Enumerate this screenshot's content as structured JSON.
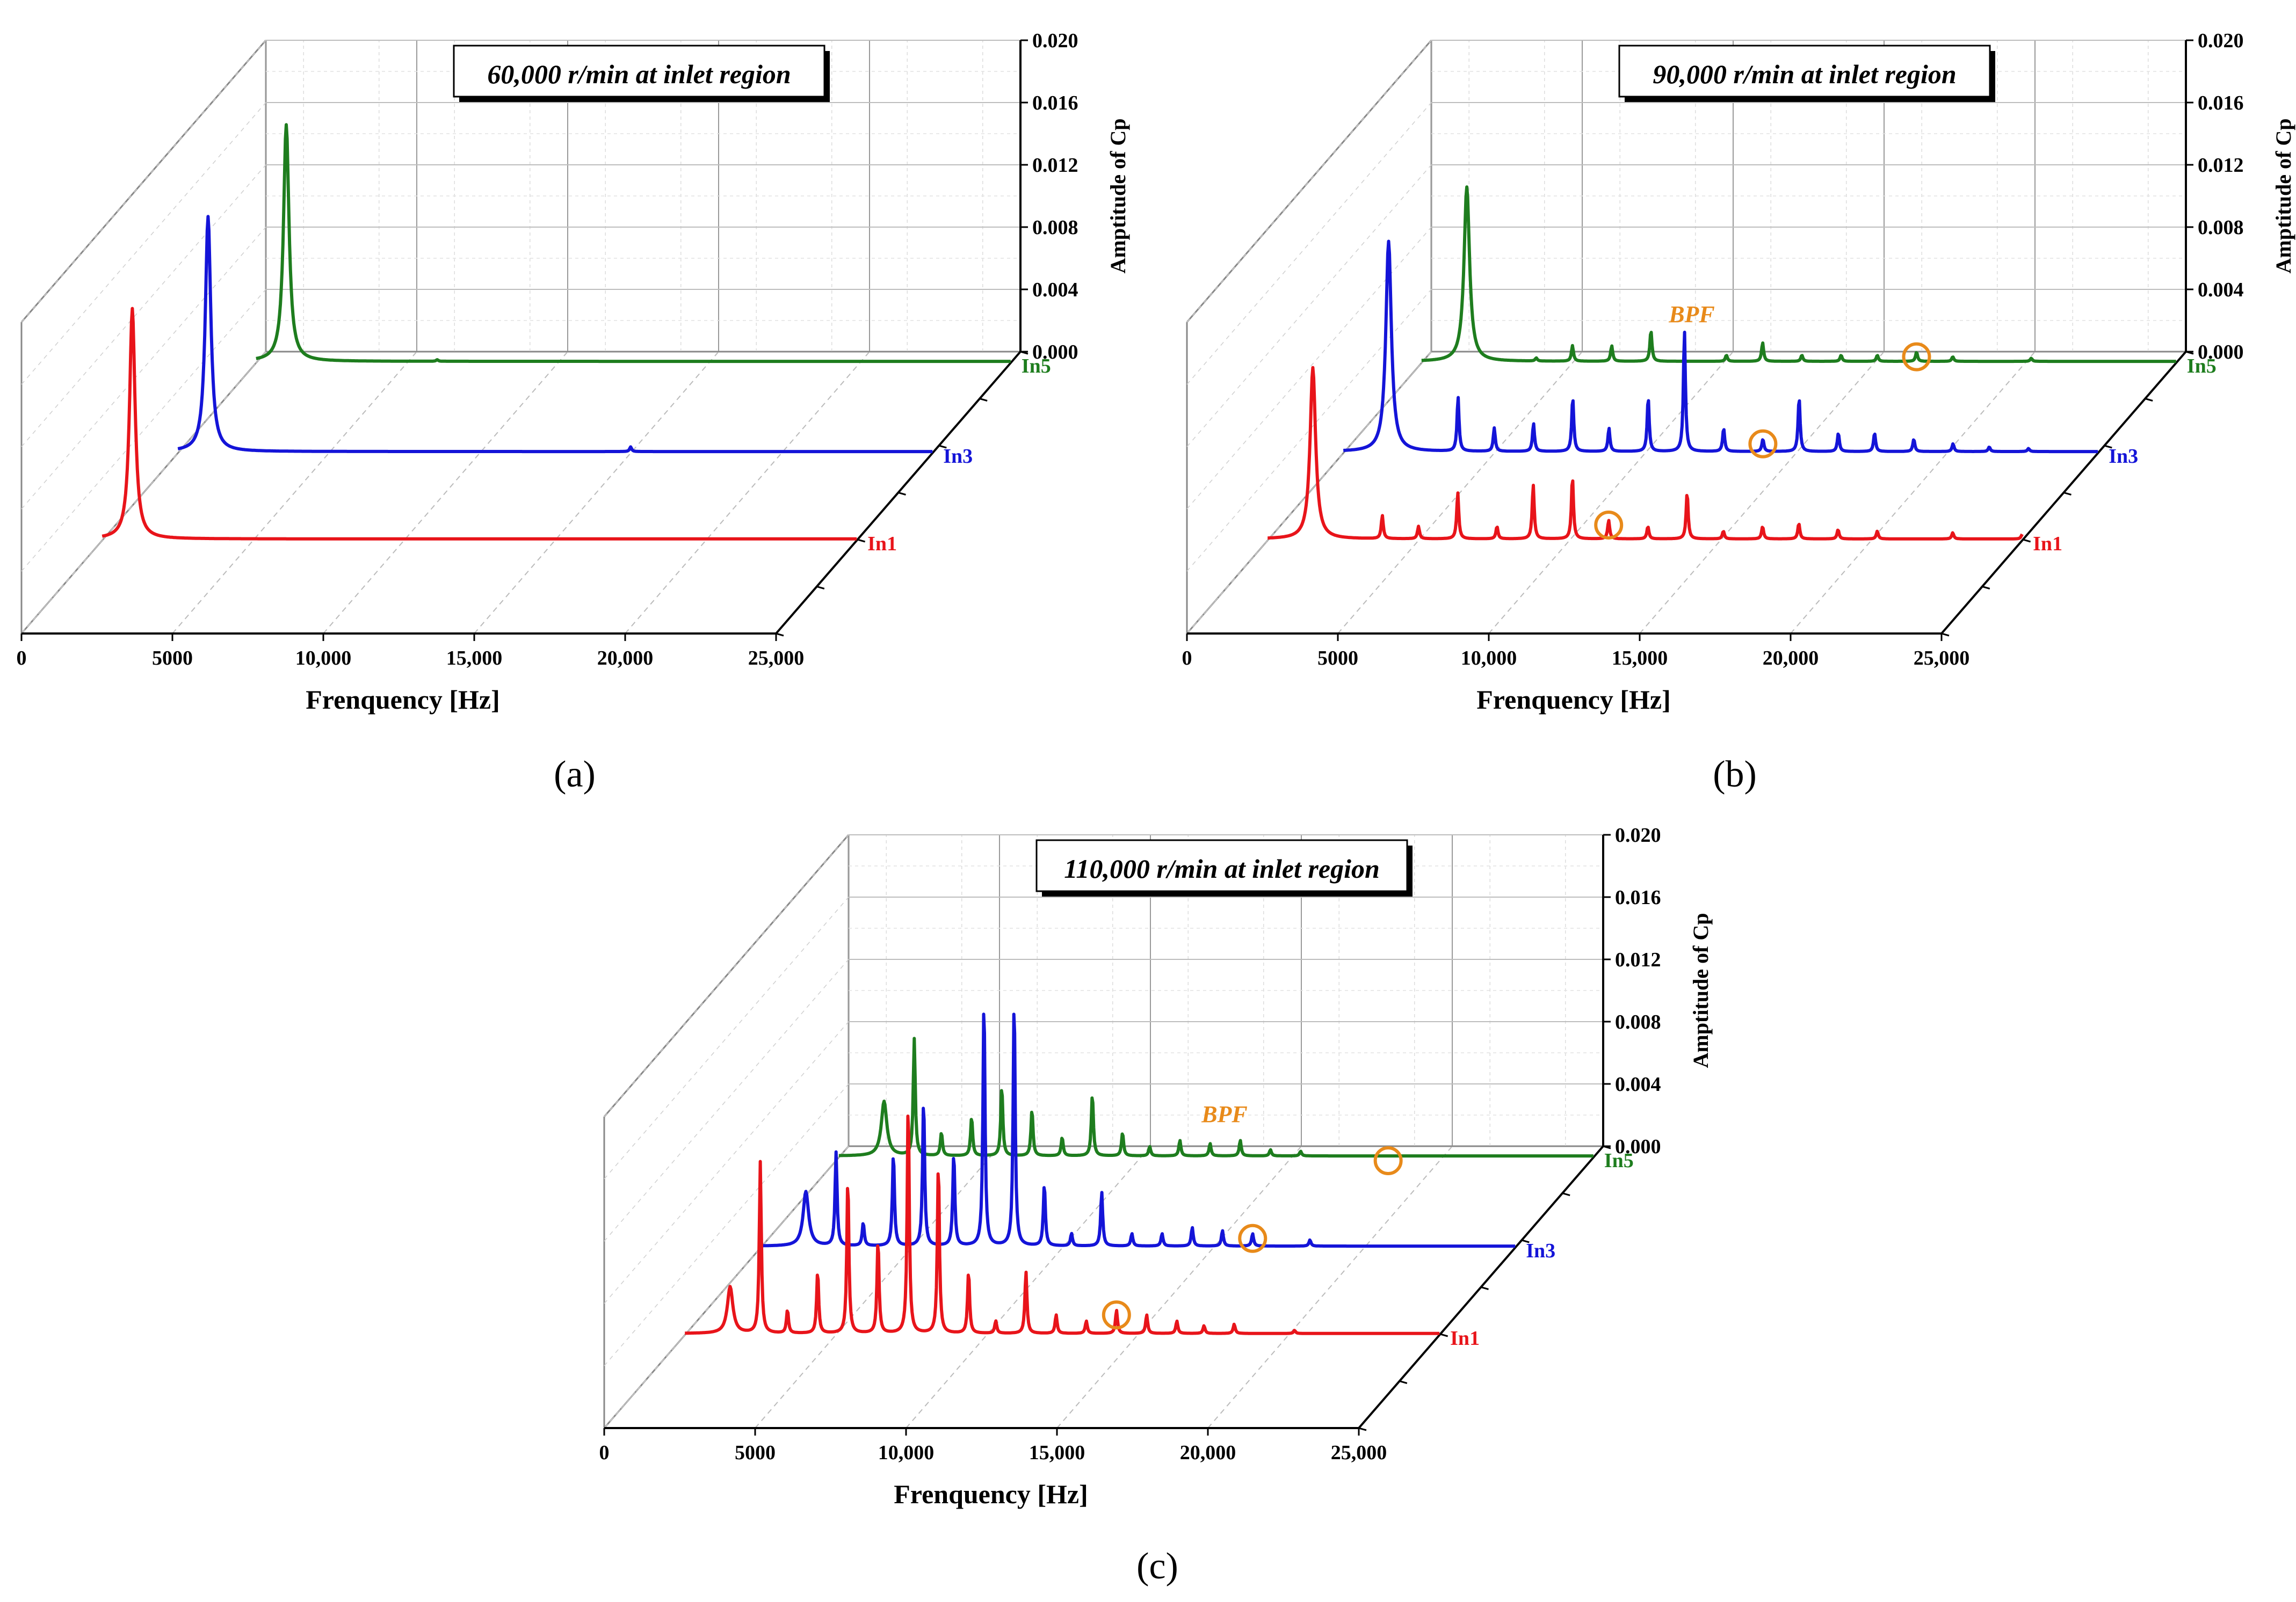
{
  "colors": {
    "In1": "#e8141a",
    "In3": "#1414d8",
    "In5": "#1e7d1e",
    "bpf": "#e88a1a",
    "grid": "#b0b0b0",
    "axis": "#000000"
  },
  "chart_data": [
    {
      "type": "line",
      "subtitle": "(a)",
      "title": "60,000 r/min at inlet region",
      "xlabel": "Frenquency [Hz]",
      "zlabel": "Amptitude of Cp",
      "xlim": [
        0,
        25000
      ],
      "zlim": [
        0,
        0.02
      ],
      "x_ticks": [
        "0",
        "5000",
        "10,000",
        "15,000",
        "20,000",
        "25,000"
      ],
      "z_ticks": [
        "0.000",
        "0.004",
        "0.008",
        "0.012",
        "0.016",
        "0.020"
      ],
      "bpf_label": "",
      "series": [
        {
          "name": "In1",
          "base": 0.0001,
          "decay": 0.0018,
          "peaks": [
            [
              1000,
              0.0148
            ]
          ]
        },
        {
          "name": "In3",
          "base": 0.0001,
          "decay": 0.0018,
          "peaks": [
            [
              1000,
              0.0151
            ],
            [
              15000,
              0.0003
            ]
          ]
        },
        {
          "name": "In5",
          "base": 0.0001,
          "decay": 0.0018,
          "peaks": [
            [
              1000,
              0.0152
            ],
            [
              6000,
              0.0001
            ]
          ]
        }
      ],
      "bpf_points": []
    },
    {
      "type": "line",
      "subtitle": "(b)",
      "title": "90,000 r/min at inlet region",
      "xlabel": "Frenquency [Hz]",
      "zlabel": "Amptitude of Cp",
      "xlim": [
        0,
        25000
      ],
      "zlim": [
        0,
        0.02
      ],
      "x_ticks": [
        "0",
        "5000",
        "10,000",
        "15,000",
        "20,000",
        "25,000"
      ],
      "z_ticks": [
        "0.000",
        "0.004",
        "0.008",
        "0.012",
        "0.016",
        "0.020"
      ],
      "bpf_label": "BPF",
      "series": [
        {
          "name": "In1",
          "base": 0.0001,
          "decay": 0.0018,
          "peaks": [
            [
              1500,
              0.011
            ],
            [
              3800,
              0.0015
            ],
            [
              5000,
              0.0008
            ],
            [
              6300,
              0.003
            ],
            [
              7600,
              0.0008
            ],
            [
              8800,
              0.0035
            ],
            [
              10100,
              0.004
            ],
            [
              11300,
              0.0012
            ],
            [
              12600,
              0.0008
            ],
            [
              13900,
              0.003
            ],
            [
              15100,
              0.0005
            ],
            [
              16400,
              0.0008
            ],
            [
              17600,
              0.001
            ],
            [
              18900,
              0.0006
            ],
            [
              20200,
              0.0005
            ],
            [
              22700,
              0.0004
            ],
            [
              25000,
              0.0003
            ]
          ]
        },
        {
          "name": "In3",
          "base": 0.0001,
          "decay": 0.0018,
          "peaks": [
            [
              1500,
              0.0135
            ],
            [
              3800,
              0.0035
            ],
            [
              5000,
              0.0015
            ],
            [
              6300,
              0.0018
            ],
            [
              7600,
              0.0035
            ],
            [
              8800,
              0.0015
            ],
            [
              10100,
              0.0035
            ],
            [
              11300,
              0.0078
            ],
            [
              12600,
              0.0015
            ],
            [
              13900,
              0.0008
            ],
            [
              15100,
              0.0035
            ],
            [
              16400,
              0.0012
            ],
            [
              17600,
              0.0012
            ],
            [
              18900,
              0.0008
            ],
            [
              20200,
              0.0005
            ],
            [
              21400,
              0.0003
            ],
            [
              22700,
              0.0002
            ]
          ]
        },
        {
          "name": "In5",
          "base": 0.0001,
          "decay": 0.0018,
          "peaks": [
            [
              1500,
              0.0112
            ],
            [
              3800,
              0.0002
            ],
            [
              5000,
              0.001
            ],
            [
              6300,
              0.001
            ],
            [
              7600,
              0.002
            ],
            [
              10100,
              0.0004
            ],
            [
              11300,
              0.0012
            ],
            [
              12600,
              0.0004
            ],
            [
              13900,
              0.0004
            ],
            [
              15100,
              0.0004
            ],
            [
              16400,
              0.0006
            ],
            [
              17600,
              0.0003
            ],
            [
              20200,
              0.0002
            ]
          ]
        }
      ],
      "bpf_points": [
        [
          0,
          11300
        ],
        [
          1,
          13900
        ],
        [
          2,
          16400
        ]
      ]
    },
    {
      "type": "line",
      "subtitle": "(c)",
      "title": "110,000 r/min at inlet region",
      "xlabel": "Frenquency [Hz]",
      "zlabel": "Amptitude of Cp",
      "xlim": [
        0,
        25000
      ],
      "zlim": [
        0,
        0.02
      ],
      "x_ticks": [
        "0",
        "5000",
        "10,000",
        "15,000",
        "20,000",
        "25,000"
      ],
      "z_ticks": [
        "0.000",
        "0.004",
        "0.008",
        "0.012",
        "0.016",
        "0.020"
      ],
      "bpf_label": "BPF",
      "series": [
        {
          "name": "In1",
          "base": 0.0001,
          "decay": 0.001,
          "peaks": [
            [
              1500,
              0.003
            ],
            [
              2500,
              0.011
            ],
            [
              3400,
              0.0015
            ],
            [
              4400,
              0.004
            ],
            [
              5400,
              0.01
            ],
            [
              6400,
              0.006
            ],
            [
              7400,
              0.015
            ],
            [
              8400,
              0.011
            ],
            [
              9400,
              0.004
            ],
            [
              10300,
              0.0008
            ],
            [
              11300,
              0.004
            ],
            [
              12300,
              0.0012
            ],
            [
              13300,
              0.0008
            ],
            [
              14300,
              0.0015
            ],
            [
              15300,
              0.0012
            ],
            [
              16300,
              0.0008
            ],
            [
              17200,
              0.0005
            ],
            [
              18200,
              0.0006
            ],
            [
              20200,
              0.0002
            ]
          ]
        },
        {
          "name": "In3",
          "base": 0.0001,
          "decay": 0.001,
          "peaks": [
            [
              1500,
              0.0035
            ],
            [
              2500,
              0.006
            ],
            [
              3400,
              0.0015
            ],
            [
              4400,
              0.006
            ],
            [
              5400,
              0.0095
            ],
            [
              6400,
              0.006
            ],
            [
              7400,
              0.016
            ],
            [
              8400,
              0.016
            ],
            [
              9400,
              0.004
            ],
            [
              10300,
              0.0008
            ],
            [
              11300,
              0.0035
            ],
            [
              12300,
              0.0008
            ],
            [
              13300,
              0.0008
            ],
            [
              14300,
              0.0012
            ],
            [
              15300,
              0.001
            ],
            [
              16300,
              0.0008
            ],
            [
              18200,
              0.0004
            ]
          ]
        },
        {
          "name": "In5",
          "base": 0.0001,
          "decay": 0.001,
          "peaks": [
            [
              1500,
              0.0035
            ],
            [
              2500,
              0.0075
            ],
            [
              3400,
              0.0015
            ],
            [
              4400,
              0.0025
            ],
            [
              5400,
              0.0045
            ],
            [
              6400,
              0.003
            ],
            [
              7400,
              0.0012
            ],
            [
              8400,
              0.004
            ],
            [
              9400,
              0.0015
            ],
            [
              10300,
              0.0006
            ],
            [
              11300,
              0.001
            ],
            [
              12300,
              0.0008
            ],
            [
              13300,
              0.001
            ],
            [
              14300,
              0.0004
            ],
            [
              15300,
              0.0003
            ]
          ]
        }
      ],
      "bpf_points": [
        [
          0,
          14300
        ],
        [
          1,
          16300
        ],
        [
          2,
          18200
        ]
      ]
    }
  ]
}
